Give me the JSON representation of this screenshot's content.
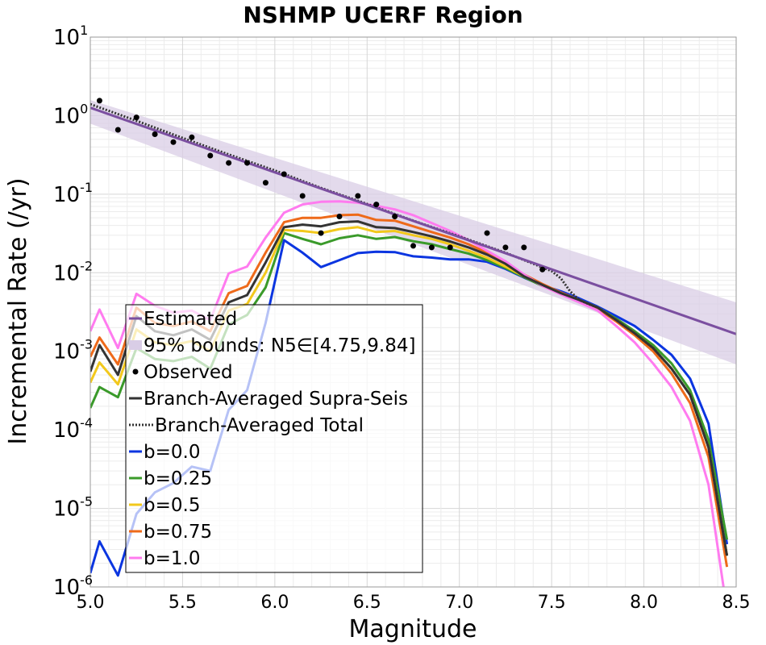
{
  "chart_data": {
    "type": "line",
    "title": "NSHMP UCERF Region",
    "xlabel": "Magnitude",
    "ylabel": "Incremental Rate (/yr)",
    "xlim": [
      5.0,
      8.5
    ],
    "ylim": [
      1e-06,
      10
    ],
    "y_scale": "log",
    "grid": true,
    "legend_position": "lower-left",
    "x_ticks": [
      "5.0",
      "5.5",
      "6.0",
      "6.5",
      "7.0",
      "7.5",
      "8.0",
      "8.5"
    ],
    "y_ticks": [
      {
        "base": "10",
        "exp": "1"
      },
      {
        "base": "10",
        "exp": "0"
      },
      {
        "base": "10",
        "exp": "-1"
      },
      {
        "base": "10",
        "exp": "-2"
      },
      {
        "base": "10",
        "exp": "-3"
      },
      {
        "base": "10",
        "exp": "-4"
      },
      {
        "base": "10",
        "exp": "-5"
      },
      {
        "base": "10",
        "exp": "-6"
      }
    ],
    "colors": {
      "estimated": "#7b4fa0",
      "bounds": "#d9cde6",
      "observed": "#000000",
      "supra": "#333333",
      "total": "#333333",
      "b0": "#0b35e0",
      "b025": "#3a9a2a",
      "b05": "#f2c81c",
      "b075": "#ee6a1a",
      "b1": "#ff7bef"
    },
    "estimated": {
      "name": "Estimated",
      "x": [
        5.0,
        8.5
      ],
      "y": [
        1.26,
        0.00166
      ]
    },
    "bounds": {
      "name": "95% bounds: N5∈[4.75,9.84]",
      "x": [
        5.0,
        8.5
      ],
      "upper": [
        1.58,
        0.0042
      ],
      "lower": [
        0.79,
        0.00068
      ]
    },
    "observed": {
      "name": "Observed",
      "x": [
        5.05,
        5.15,
        5.25,
        5.35,
        5.45,
        5.55,
        5.65,
        5.75,
        5.85,
        5.95,
        6.05,
        6.15,
        6.25,
        6.35,
        6.45,
        6.55,
        6.65,
        6.75,
        6.85,
        6.95,
        7.15,
        7.25,
        7.35,
        7.45
      ],
      "y": [
        1.55,
        0.66,
        0.95,
        0.58,
        0.46,
        0.53,
        0.31,
        0.25,
        0.25,
        0.14,
        0.18,
        0.095,
        0.032,
        0.052,
        0.095,
        0.074,
        0.052,
        0.022,
        0.021,
        0.021,
        0.032,
        0.021,
        0.021,
        0.011
      ]
    },
    "supra": {
      "name": "Branch-Averaged Supra-Seis",
      "x": [
        5.0,
        5.05,
        5.15,
        5.25,
        5.35,
        5.45,
        5.55,
        5.65,
        5.75,
        5.85,
        5.95,
        6.05,
        6.15,
        6.25,
        6.35,
        6.45,
        6.55,
        6.65,
        6.75,
        6.85,
        6.95,
        7.05,
        7.15,
        7.25,
        7.35,
        7.45,
        7.55,
        7.65,
        7.75,
        7.85,
        7.95,
        8.05,
        8.15,
        8.25,
        8.35,
        8.45
      ],
      "y": [
        0.00055,
        0.0012,
        0.0005,
        0.0028,
        0.0018,
        0.0016,
        0.0019,
        0.0014,
        0.0042,
        0.0052,
        0.0135,
        0.038,
        0.041,
        0.039,
        0.044,
        0.045,
        0.038,
        0.037,
        0.033,
        0.029,
        0.025,
        0.021,
        0.017,
        0.013,
        0.009,
        0.007,
        0.0055,
        0.0045,
        0.0036,
        0.0025,
        0.0017,
        0.0011,
        0.0006,
        0.00028,
        6e-05,
        2.5e-06
      ]
    },
    "total": {
      "name": "Branch-Averaged Total",
      "x": [
        5.0,
        5.25,
        5.5,
        5.75,
        6.0,
        6.25,
        6.5,
        6.75,
        7.0,
        7.25,
        7.5,
        7.55,
        7.6,
        7.65,
        7.7,
        7.75,
        7.85,
        7.95,
        8.05,
        8.15,
        8.25,
        8.35,
        8.45
      ],
      "y": [
        1.4,
        0.86,
        0.52,
        0.32,
        0.2,
        0.12,
        0.075,
        0.046,
        0.029,
        0.018,
        0.0105,
        0.0085,
        0.0058,
        0.0045,
        0.004,
        0.0036,
        0.0025,
        0.0017,
        0.0011,
        0.0006,
        0.00028,
        6e-05,
        2.5e-06
      ]
    },
    "series": [
      {
        "name": "b=0.0",
        "color_key": "b0",
        "x": [
          5.0,
          5.05,
          5.15,
          5.25,
          5.35,
          5.45,
          5.55,
          5.65,
          5.75,
          5.85,
          5.95,
          6.05,
          6.15,
          6.25,
          6.35,
          6.45,
          6.55,
          6.65,
          6.75,
          6.85,
          6.95,
          7.05,
          7.15,
          7.25,
          7.35,
          7.45,
          7.55,
          7.65,
          7.75,
          7.85,
          7.95,
          8.05,
          8.15,
          8.25,
          8.35,
          8.45
        ],
        "y": [
          1.5e-06,
          3.8e-06,
          1.4e-06,
          8.5e-06,
          1.6e-05,
          2.1e-05,
          3.4e-05,
          3e-05,
          0.00018,
          0.00032,
          0.0023,
          0.026,
          0.018,
          0.0118,
          0.0145,
          0.0178,
          0.0185,
          0.0183,
          0.0162,
          0.0156,
          0.0148,
          0.0148,
          0.0138,
          0.0112,
          0.0087,
          0.0069,
          0.0058,
          0.0047,
          0.0037,
          0.0028,
          0.0021,
          0.0014,
          0.0009,
          0.00045,
          0.00012,
          3.5e-06
        ]
      },
      {
        "name": "b=0.25",
        "color_key": "b025",
        "x": [
          5.0,
          5.05,
          5.15,
          5.25,
          5.35,
          5.45,
          5.55,
          5.65,
          5.75,
          5.85,
          5.95,
          6.05,
          6.15,
          6.25,
          6.35,
          6.45,
          6.55,
          6.65,
          6.75,
          6.85,
          6.95,
          7.05,
          7.15,
          7.25,
          7.35,
          7.45,
          7.55,
          7.65,
          7.75,
          7.85,
          7.95,
          8.05,
          8.15,
          8.25,
          8.35,
          8.45
        ],
        "y": [
          0.00019,
          0.00035,
          0.00026,
          0.0011,
          0.0008,
          0.00075,
          0.00085,
          0.0006,
          0.0022,
          0.0029,
          0.0065,
          0.032,
          0.027,
          0.023,
          0.0275,
          0.03,
          0.027,
          0.0285,
          0.0252,
          0.023,
          0.02,
          0.0175,
          0.0145,
          0.0115,
          0.0088,
          0.0068,
          0.0055,
          0.0045,
          0.0036,
          0.0026,
          0.0018,
          0.0012,
          0.0007,
          0.00032,
          7.5e-05,
          4e-06
        ]
      },
      {
        "name": "b=0.5",
        "color_key": "b05",
        "x": [
          5.0,
          5.05,
          5.15,
          5.25,
          5.35,
          5.45,
          5.55,
          5.65,
          5.75,
          5.85,
          5.95,
          6.05,
          6.15,
          6.25,
          6.35,
          6.45,
          6.55,
          6.65,
          6.75,
          6.85,
          6.95,
          7.05,
          7.15,
          7.25,
          7.35,
          7.45,
          7.55,
          7.65,
          7.75,
          7.85,
          7.95,
          8.05,
          8.15,
          8.25,
          8.35,
          8.45
        ],
        "y": [
          0.0004,
          0.00072,
          0.00038,
          0.0019,
          0.0013,
          0.0012,
          0.00135,
          0.001,
          0.0033,
          0.004,
          0.01,
          0.035,
          0.034,
          0.032,
          0.036,
          0.038,
          0.033,
          0.034,
          0.03,
          0.027,
          0.023,
          0.019,
          0.0155,
          0.012,
          0.009,
          0.007,
          0.0055,
          0.0045,
          0.0036,
          0.0025,
          0.0017,
          0.0011,
          0.0006,
          0.00028,
          6e-05,
          2.5e-06
        ]
      },
      {
        "name": "b=0.75",
        "color_key": "b075",
        "x": [
          5.0,
          5.05,
          5.15,
          5.25,
          5.35,
          5.45,
          5.55,
          5.65,
          5.75,
          5.85,
          5.95,
          6.05,
          6.15,
          6.25,
          6.35,
          6.45,
          6.55,
          6.65,
          6.75,
          6.85,
          6.95,
          7.05,
          7.15,
          7.25,
          7.35,
          7.45,
          7.55,
          7.65,
          7.75,
          7.85,
          7.95,
          8.05,
          8.15,
          8.25,
          8.35,
          8.45
        ],
        "y": [
          0.00085,
          0.0015,
          0.00068,
          0.0036,
          0.0023,
          0.0021,
          0.0024,
          0.0018,
          0.0055,
          0.0068,
          0.018,
          0.044,
          0.05,
          0.05,
          0.054,
          0.055,
          0.047,
          0.046,
          0.039,
          0.033,
          0.028,
          0.023,
          0.018,
          0.0135,
          0.0095,
          0.0072,
          0.0056,
          0.0045,
          0.0035,
          0.0024,
          0.0016,
          0.001,
          0.00052,
          0.00022,
          4.5e-05,
          1.8e-06
        ]
      },
      {
        "name": "b=1.0",
        "color_key": "b1",
        "x": [
          5.0,
          5.05,
          5.15,
          5.25,
          5.35,
          5.45,
          5.55,
          5.65,
          5.75,
          5.85,
          5.95,
          6.05,
          6.15,
          6.25,
          6.35,
          6.45,
          6.55,
          6.65,
          6.75,
          6.85,
          6.95,
          7.05,
          7.15,
          7.25,
          7.35,
          7.45,
          7.55,
          7.65,
          7.75,
          7.85,
          7.95,
          8.05,
          8.15,
          8.25,
          8.35,
          8.45
        ],
        "y": [
          0.0018,
          0.0034,
          0.0011,
          0.0054,
          0.0038,
          0.0031,
          0.0033,
          0.0025,
          0.0098,
          0.012,
          0.028,
          0.058,
          0.074,
          0.08,
          0.081,
          0.078,
          0.071,
          0.064,
          0.054,
          0.043,
          0.034,
          0.026,
          0.019,
          0.014,
          0.0095,
          0.0068,
          0.0053,
          0.0042,
          0.0033,
          0.0021,
          0.0013,
          0.0007,
          0.00035,
          0.00013,
          2e-05,
          5e-07
        ]
      }
    ]
  }
}
